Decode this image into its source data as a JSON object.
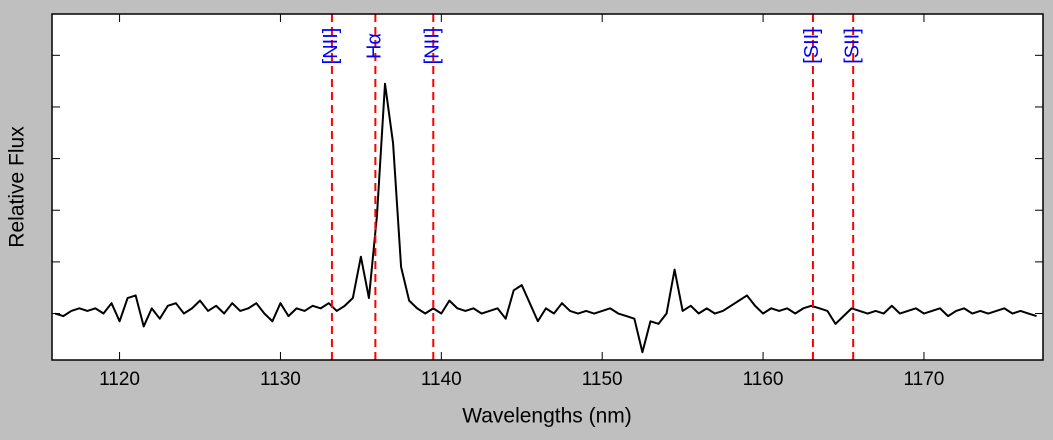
{
  "chart_data": {
    "type": "line",
    "xlabel": "Wavelengths (nm)",
    "ylabel": "Relative Flux",
    "xlim": [
      1115.8,
      1177.4
    ],
    "xticks": [
      1120,
      1130,
      1140,
      1150,
      1160,
      1170
    ],
    "ylim": [
      0.1,
      6.8
    ],
    "yticks": [
      1,
      2,
      3,
      4,
      5,
      6
    ],
    "color": "#000000",
    "x": [
      1116,
      1116.5,
      1117,
      1117.5,
      1118,
      1118.5,
      1119,
      1119.5,
      1120,
      1120.5,
      1121,
      1121.5,
      1122,
      1122.5,
      1123,
      1123.5,
      1124,
      1124.5,
      1125,
      1125.5,
      1126,
      1126.5,
      1127,
      1127.5,
      1128,
      1128.5,
      1129,
      1129.5,
      1130,
      1130.5,
      1131,
      1131.5,
      1132,
      1132.5,
      1133,
      1133.5,
      1134,
      1134.5,
      1135,
      1135.5,
      1136,
      1136.5,
      1137,
      1137.5,
      1138,
      1138.5,
      1139,
      1139.5,
      1140,
      1140.5,
      1141,
      1141.5,
      1142,
      1142.5,
      1143,
      1143.5,
      1144,
      1144.5,
      1145,
      1145.5,
      1146,
      1146.5,
      1147,
      1147.5,
      1148,
      1148.5,
      1149,
      1149.5,
      1150,
      1150.5,
      1151,
      1151.5,
      1152,
      1152.5,
      1153,
      1153.5,
      1154,
      1154.5,
      1155,
      1155.5,
      1156,
      1156.5,
      1157,
      1157.5,
      1158,
      1158.5,
      1159,
      1159.5,
      1160,
      1160.5,
      1161,
      1161.5,
      1162,
      1162.5,
      1163,
      1163.5,
      1164,
      1164.5,
      1165,
      1165.5,
      1166,
      1166.5,
      1167,
      1167.5,
      1168,
      1168.5,
      1169,
      1169.5,
      1170,
      1170.5,
      1171,
      1171.5,
      1172,
      1172.5,
      1173,
      1173.5,
      1174,
      1174.5,
      1175,
      1175.5,
      1176,
      1176.5,
      1177
    ],
    "values": [
      1.0,
      0.95,
      1.05,
      1.1,
      1.05,
      1.1,
      1.0,
      1.2,
      0.85,
      1.3,
      1.35,
      0.75,
      1.1,
      0.9,
      1.15,
      1.2,
      1.0,
      1.1,
      1.25,
      1.05,
      1.15,
      1.0,
      1.2,
      1.05,
      1.1,
      1.2,
      1.0,
      0.85,
      1.2,
      0.95,
      1.1,
      1.05,
      1.15,
      1.1,
      1.2,
      1.05,
      1.15,
      1.3,
      2.1,
      1.3,
      2.9,
      5.45,
      4.3,
      1.9,
      1.25,
      1.1,
      1.0,
      1.1,
      1.0,
      1.25,
      1.1,
      1.05,
      1.1,
      1.0,
      1.05,
      1.1,
      0.9,
      1.45,
      1.55,
      1.2,
      0.85,
      1.1,
      1.0,
      1.2,
      1.05,
      1.0,
      1.05,
      1.0,
      1.05,
      1.1,
      1.0,
      0.95,
      0.9,
      0.25,
      0.85,
      0.8,
      1.0,
      1.85,
      1.05,
      1.15,
      1.0,
      1.1,
      1.0,
      1.05,
      1.15,
      1.25,
      1.35,
      1.15,
      1.0,
      1.1,
      1.05,
      1.1,
      1.0,
      1.1,
      1.15,
      1.1,
      1.05,
      0.8,
      0.95,
      1.1,
      1.05,
      1.0,
      1.05,
      1.0,
      1.15,
      1.0,
      1.05,
      1.1,
      1.0,
      1.05,
      1.1,
      0.95,
      1.05,
      1.1,
      1.0,
      1.05,
      1.0,
      1.05,
      1.1,
      1.0,
      1.05,
      1.0,
      0.95
    ],
    "vlines_color": "#ff0000",
    "vline_label_color": "#0000ff",
    "vlines": [
      {
        "x": 1133.2,
        "label": "[NII]"
      },
      {
        "x": 1135.9,
        "label": "Hα"
      },
      {
        "x": 1139.5,
        "label": "[NII]"
      },
      {
        "x": 1163.1,
        "label": "[SII]"
      },
      {
        "x": 1165.6,
        "label": "[SII]"
      }
    ]
  }
}
